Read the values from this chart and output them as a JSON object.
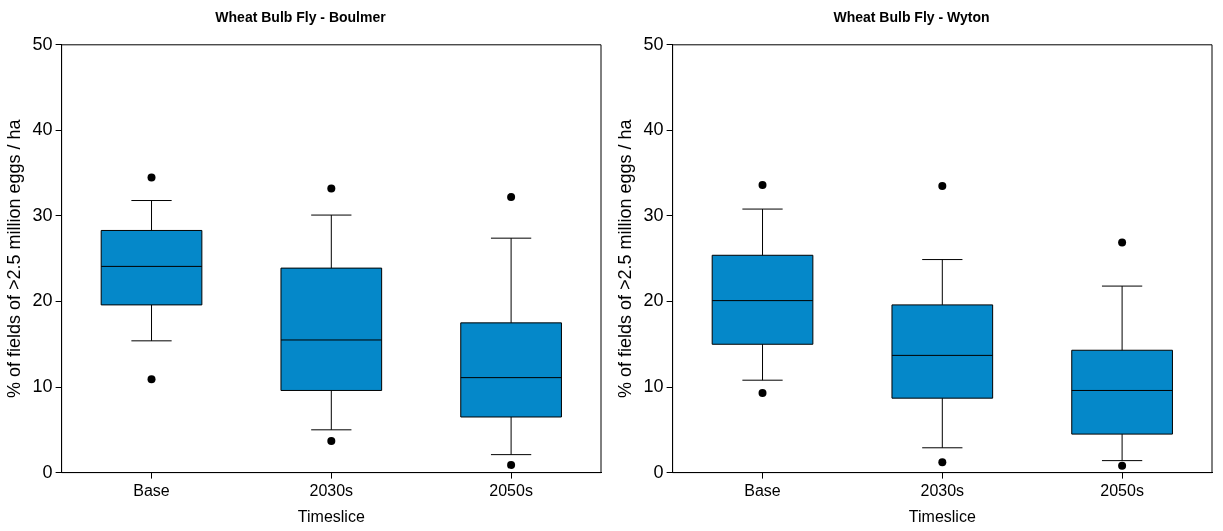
{
  "chart_data": [
    {
      "type": "box",
      "title": "Wheat Bulb Fly - Boulmer",
      "xlabel": "Timeslice",
      "ylabel": "% of fields of >2.5 million eggs / ha",
      "categories": [
        "Base",
        "2030s",
        "2050s"
      ],
      "color": "#0588c9",
      "ylim": [
        0,
        50
      ],
      "yticks": [
        0,
        10,
        20,
        30,
        40,
        50
      ],
      "grid": false,
      "legend": false,
      "boxes": [
        {
          "low": 15.4,
          "q1": 19.6,
          "median": 24.1,
          "q3": 28.3,
          "high": 31.8,
          "outliers": [
            34.5,
            10.9
          ]
        },
        {
          "low": 5.0,
          "q1": 9.6,
          "median": 15.5,
          "q3": 23.9,
          "high": 30.1,
          "outliers": [
            33.2,
            3.7
          ]
        },
        {
          "low": 2.1,
          "q1": 6.5,
          "median": 11.1,
          "q3": 17.5,
          "high": 27.4,
          "outliers": [
            32.2,
            0.9
          ]
        }
      ]
    },
    {
      "type": "box",
      "title": "Wheat Bulb Fly - Wyton",
      "xlabel": "Timeslice",
      "ylabel": "% of fields of >2.5 million eggs / ha",
      "categories": [
        "Base",
        "2030s",
        "2050s"
      ],
      "color": "#0588c9",
      "ylim": [
        0,
        50
      ],
      "yticks": [
        0,
        10,
        20,
        30,
        40,
        50
      ],
      "grid": false,
      "legend": false,
      "boxes": [
        {
          "low": 10.8,
          "q1": 15.0,
          "median": 20.1,
          "q3": 25.4,
          "high": 30.8,
          "outliers": [
            33.6,
            9.3
          ]
        },
        {
          "low": 2.9,
          "q1": 8.7,
          "median": 13.7,
          "q3": 19.6,
          "high": 24.9,
          "outliers": [
            33.5,
            1.2
          ]
        },
        {
          "low": 1.4,
          "q1": 4.5,
          "median": 9.6,
          "q3": 14.3,
          "high": 21.8,
          "outliers": [
            26.9,
            0.8
          ]
        }
      ]
    }
  ]
}
